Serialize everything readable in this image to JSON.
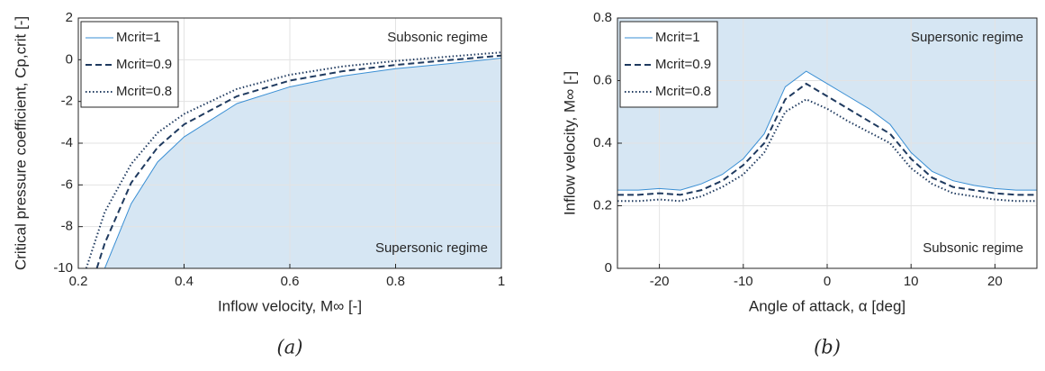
{
  "chart_data": [
    {
      "type": "line",
      "caption": "(a)",
      "xlabel": "Inflow velocity, M∞ [-]",
      "ylabel": "Critical pressure coefficient, Cp,crit [-]",
      "xlim": [
        0.2,
        1
      ],
      "ylim": [
        -10,
        2
      ],
      "xticks": [
        0.2,
        0.4,
        0.6,
        0.8,
        1
      ],
      "yticks": [
        -10,
        -8,
        -6,
        -4,
        -2,
        0,
        2
      ],
      "grid": true,
      "legend": "upper left",
      "fill": "below",
      "fill_color": "#d6e6f3",
      "annotations": [
        "Subsonic regime",
        "Supersonic regime"
      ],
      "series": [
        {
          "name": "Mcrit=1",
          "color": "#3a8fd4",
          "line_style": "solid",
          "x": [
            0.25,
            0.3,
            0.35,
            0.4,
            0.5,
            0.6,
            0.7,
            0.8,
            0.9,
            1.0
          ],
          "values": [
            -10,
            -6.9,
            -4.9,
            -3.7,
            -2.1,
            -1.3,
            -0.78,
            -0.43,
            -0.19,
            0.08
          ]
        },
        {
          "name": "Mcrit=0.9",
          "color": "#1f3a5f",
          "line_style": "dashed",
          "x": [
            0.235,
            0.25,
            0.3,
            0.35,
            0.4,
            0.5,
            0.6,
            0.7,
            0.8,
            0.9,
            1.0
          ],
          "values": [
            -10,
            -8.8,
            -5.9,
            -4.2,
            -3.1,
            -1.75,
            -1.0,
            -0.55,
            -0.25,
            -0.02,
            0.2
          ]
        },
        {
          "name": "Mcrit=0.8",
          "color": "#1f3a5f",
          "line_style": "dotted",
          "x": [
            0.215,
            0.25,
            0.3,
            0.35,
            0.4,
            0.5,
            0.6,
            0.7,
            0.8,
            0.9,
            1.0
          ],
          "values": [
            -10,
            -7.3,
            -5.0,
            -3.5,
            -2.6,
            -1.4,
            -0.72,
            -0.32,
            -0.06,
            0.15,
            0.35
          ]
        }
      ]
    },
    {
      "type": "line",
      "caption": "(b)",
      "xlabel": "Angle of attack, α [deg]",
      "ylabel": "Inflow velocity, M∞ [-]",
      "xlim": [
        -25,
        25
      ],
      "ylim": [
        0,
        0.8
      ],
      "xticks": [
        -20,
        -10,
        0,
        10,
        20
      ],
      "yticks": [
        0,
        0.2,
        0.4,
        0.6,
        0.8
      ],
      "grid": true,
      "legend": "upper left",
      "fill": "above",
      "fill_color": "#d6e6f3",
      "annotations": [
        "Supersonic regime",
        "Subsonic regime"
      ],
      "x": [
        -25,
        -22.5,
        -20,
        -17.5,
        -15,
        -12.5,
        -10,
        -7.5,
        -5,
        -2.5,
        0,
        2.5,
        5,
        7.5,
        10,
        12.5,
        15,
        17.5,
        20,
        22.5,
        25
      ],
      "series": [
        {
          "name": "Mcrit=1",
          "color": "#3a8fd4",
          "line_style": "solid",
          "values": [
            0.25,
            0.25,
            0.255,
            0.25,
            0.27,
            0.3,
            0.35,
            0.43,
            0.58,
            0.63,
            0.59,
            0.55,
            0.51,
            0.46,
            0.37,
            0.31,
            0.28,
            0.265,
            0.255,
            0.25,
            0.25
          ]
        },
        {
          "name": "Mcrit=0.9",
          "color": "#1f3a5f",
          "line_style": "dashed",
          "values": [
            0.235,
            0.235,
            0.24,
            0.235,
            0.25,
            0.28,
            0.33,
            0.4,
            0.54,
            0.59,
            0.55,
            0.51,
            0.47,
            0.43,
            0.35,
            0.29,
            0.26,
            0.25,
            0.24,
            0.235,
            0.235
          ]
        },
        {
          "name": "Mcrit=0.8",
          "color": "#1f3a5f",
          "line_style": "dotted",
          "values": [
            0.215,
            0.215,
            0.22,
            0.215,
            0.23,
            0.26,
            0.3,
            0.37,
            0.5,
            0.54,
            0.51,
            0.47,
            0.435,
            0.4,
            0.32,
            0.27,
            0.24,
            0.23,
            0.22,
            0.215,
            0.215
          ]
        }
      ]
    }
  ]
}
